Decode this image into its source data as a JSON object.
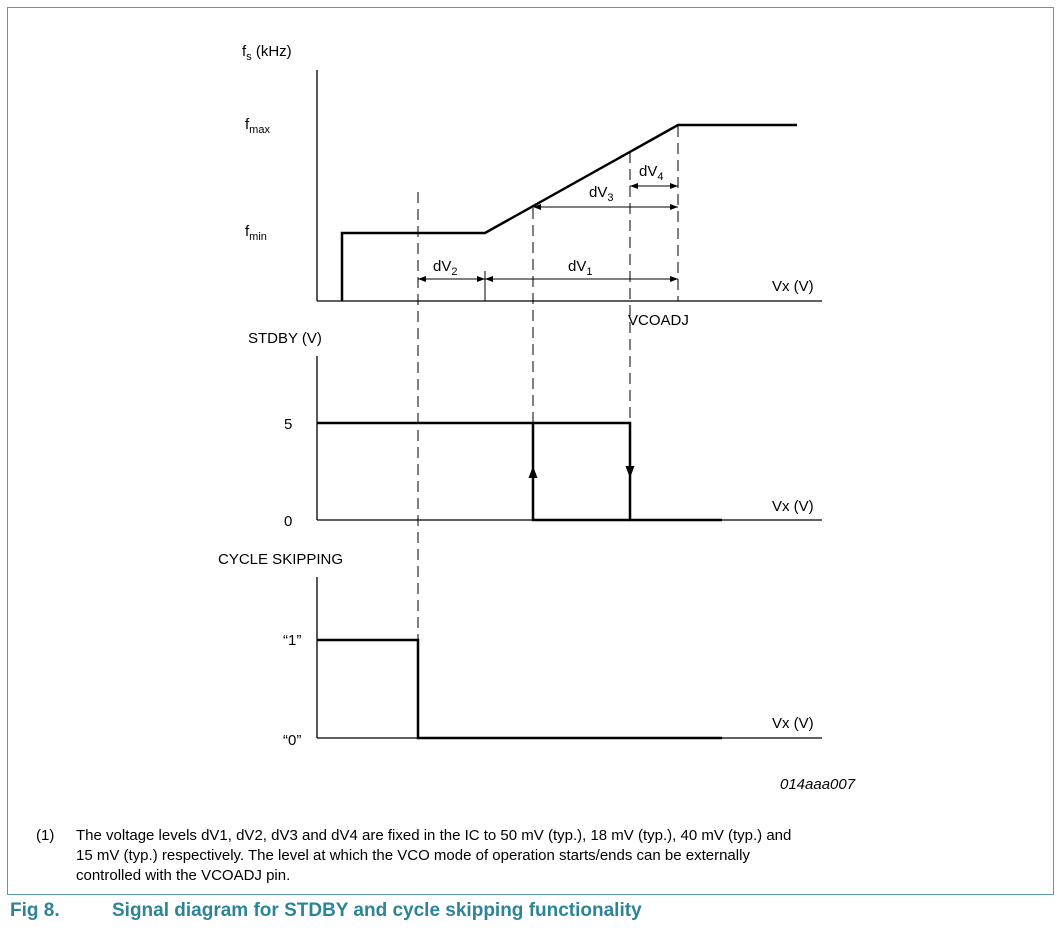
{
  "graph_fs": {
    "y_axis_label": "f",
    "y_axis_label_sub": "s",
    "y_axis_label_unit": "(kHz)",
    "fmax_label": "f",
    "fmax_sub": "max",
    "fmin_label": "f",
    "fmin_sub": "min",
    "x_axis_label": "Vx (V)",
    "vcoadj_label": "VCOADJ",
    "dv1_main": "dV",
    "dv1_sub": "1",
    "dv2_main": "dV",
    "dv2_sub": "2",
    "dv3_main": "dV",
    "dv3_sub": "3",
    "dv4_main": "dV",
    "dv4_sub": "4"
  },
  "graph_stdby": {
    "y_axis_label": "STDBY (V)",
    "level_high": "5",
    "level_low": "0",
    "x_axis_label": "Vx (V)"
  },
  "graph_cycle": {
    "y_axis_label": "CYCLE SKIPPING",
    "level_high": "“1”",
    "level_low": "“0”",
    "x_axis_label": "Vx (V)"
  },
  "figure_code": "014aaa007",
  "note": {
    "number": "(1)",
    "text": "The voltage levels dV1, dV2, dV3 and dV4 are fixed in the IC to 50 mV (typ.), 18 mV (typ.), 40 mV (typ.) and 15 mV (typ.) respectively. The level at which the VCO mode of operation starts/ends can be externally controlled with the VCOADJ pin."
  },
  "caption": {
    "number": "Fig 8.",
    "title": "Signal diagram for STDBY and cycle skipping functionality"
  },
  "colors": {
    "frame": "#5c9aa8",
    "caption": "#2b8499"
  }
}
